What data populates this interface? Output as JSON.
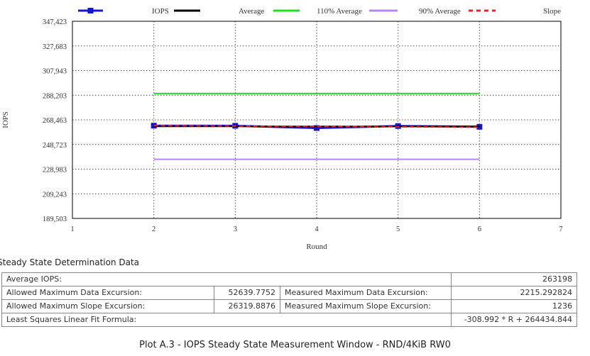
{
  "chart_data": {
    "type": "line",
    "ylabel": "IOPS",
    "xlabel": "Round",
    "x_ticks": [
      1,
      2,
      3,
      4,
      5,
      6,
      7
    ],
    "y_ticks": [
      "347,423",
      "327,683",
      "307,943",
      "288,203",
      "268,463",
      "248,723",
      "228,983",
      "209,243",
      "189,503"
    ],
    "xlim": [
      1,
      7
    ],
    "ylim": [
      189503,
      347423
    ],
    "grid": true,
    "legend_position": "top",
    "series": [
      {
        "name": "IOPS",
        "color": "#1515d0",
        "style": "line-marker",
        "x": [
          2,
          3,
          4,
          5,
          6
        ],
        "y": [
          263800,
          263700,
          261900,
          263500,
          262900
        ]
      },
      {
        "name": "Average",
        "color": "#000000",
        "style": "line",
        "x": [
          2,
          6
        ],
        "y": [
          263198,
          263198
        ]
      },
      {
        "name": "110% Average",
        "color": "#22dd22",
        "style": "line",
        "x": [
          2,
          6
        ],
        "y": [
          289518,
          289518
        ]
      },
      {
        "name": "90% Average",
        "color": "#b388ee",
        "style": "line",
        "x": [
          2,
          6
        ],
        "y": [
          236878,
          236878
        ]
      },
      {
        "name": "Slope",
        "color": "#ee2222",
        "style": "dashed",
        "x": [
          2,
          6
        ],
        "y": [
          263816,
          262580
        ]
      }
    ]
  },
  "table": {
    "title": "Steady State Determination Data",
    "average_label": "Average IOPS:",
    "average_value": "263198",
    "allowed_data_label": "Allowed Maximum Data Excursion:",
    "allowed_data_value": "52639.7752",
    "measured_data_label": "Measured Maximum Data Excursion:",
    "measured_data_value": "2215.292824",
    "allowed_slope_label": "Allowed Maximum Slope Excursion:",
    "allowed_slope_value": "26319.8876",
    "measured_slope_label": "Measured Maximum Slope Excursion:",
    "measured_slope_value": "1236",
    "fit_label": "Least Squares Linear Fit Formula:",
    "fit_value": "-308.992 * R + 264434.844"
  },
  "caption": "Plot A.3 - IOPS Steady State Measurement Window - RND/4KiB RW0"
}
